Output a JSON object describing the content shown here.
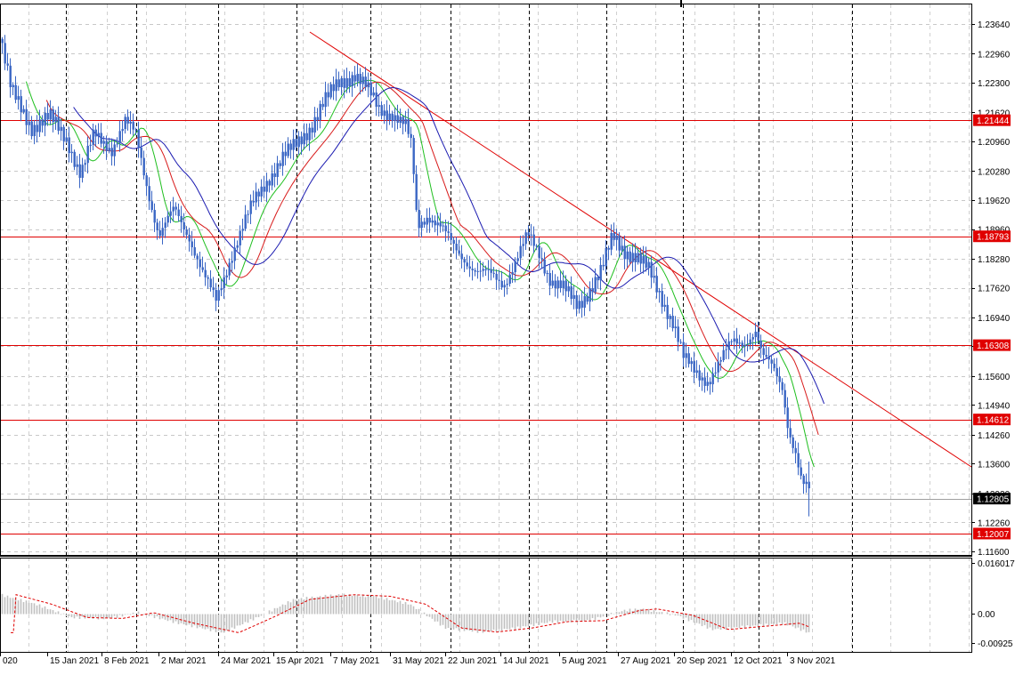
{
  "chart_data": [
    {
      "type": "candlestick",
      "instrument_view": "price",
      "y_axis_ticks": [
        "1.23640",
        "1.22960",
        "1.22300",
        "1.21620",
        "1.20960",
        "1.20280",
        "1.19620",
        "1.18960",
        "1.18280",
        "1.17620",
        "1.16940",
        "1.16280",
        "1.15600",
        "1.14940",
        "1.14260",
        "1.13600",
        "1.12920",
        "1.12260",
        "1.11600"
      ],
      "x_axis_labels": [
        "020",
        "15 Jan 2021",
        "8 Feb 2021",
        "2 Mar 2021",
        "24 Mar 2021",
        "15 Apr 2021",
        "7 May 2021",
        "31 May 2021",
        "22 Jun 2021",
        "14 Jul 2021",
        "5 Aug 2021",
        "27 Aug 2021",
        "20 Sep 2021",
        "12 Oct 2021",
        "3 Nov 2021"
      ],
      "ylim": [
        1.116,
        1.2364
      ],
      "grid": true,
      "colors": {
        "candle": "#3a66c4",
        "hline": "#e00000",
        "trendline": "#e00000",
        "ma_fast": "#1fbf1f",
        "ma_mid": "#d81b1b",
        "ma_slow": "#1a1ab0",
        "current_price_label_bg": "#000000"
      },
      "horizontal_levels": [
        {
          "value": 1.21444,
          "label": "1.21444"
        },
        {
          "value": 1.18793,
          "label": "1.18793"
        },
        {
          "value": 1.16308,
          "label": "1.16308"
        },
        {
          "value": 1.14612,
          "label": "1.14612"
        },
        {
          "value": 1.12007,
          "label": "1.12007"
        }
      ],
      "current_price": {
        "value": 1.12805,
        "label": "1.12805"
      },
      "trendline": {
        "from": {
          "x": "3 May 2021",
          "y": 1.231
        },
        "to": {
          "x": "26 Nov 2021",
          "y": 1.1365
        }
      },
      "candles_sampled": [
        {
          "x": "Jan 2021",
          "close": 1.23
        },
        {
          "x": "15 Jan 2021",
          "close": 1.213
        },
        {
          "x": "8 Feb 2021",
          "close": 1.206
        },
        {
          "x": "2 Mar 2021",
          "close": 1.207
        },
        {
          "x": "24 Mar 2021",
          "close": 1.177
        },
        {
          "x": "15 Apr 2021",
          "close": 1.199
        },
        {
          "x": "7 May 2021",
          "close": 1.217
        },
        {
          "x": "31 May 2021",
          "close": 1.217
        },
        {
          "x": "22 Jun 2021",
          "close": 1.191
        },
        {
          "x": "14 Jul 2021",
          "close": 1.179
        },
        {
          "x": "5 Aug 2021",
          "close": 1.177
        },
        {
          "x": "27 Aug 2021",
          "close": 1.18
        },
        {
          "x": "20 Sep 2021",
          "close": 1.173
        },
        {
          "x": "12 Oct 2021",
          "close": 1.156
        },
        {
          "x": "3 Nov 2021",
          "close": 1.156
        },
        {
          "x": "19 Nov 2021",
          "close": 1.13
        }
      ]
    },
    {
      "type": "bar",
      "instrument_view": "oscillator",
      "y_axis_ticks": [
        "0.016017",
        "0.00",
        "-0.00925"
      ],
      "ylim": [
        -0.011,
        0.0175
      ],
      "colors": {
        "histogram": "#c0c0c0",
        "signal": "#e00000"
      }
    }
  ]
}
